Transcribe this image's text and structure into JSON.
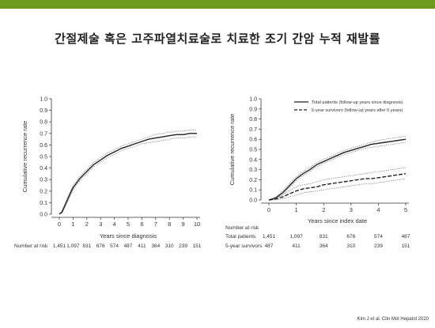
{
  "colors": {
    "topbar": "#6b9a1c",
    "line": "#222222",
    "ci": "#666666"
  },
  "slide": {
    "title": "간절제술 혹은 고주파열치료술로 치료한 조기 간암 누적 재발률",
    "citation": "Kim J et al. Clin Mol Hepatol 2020"
  },
  "chart_data": [
    {
      "type": "line",
      "title": "",
      "xlabel": "Years since diagnosis",
      "ylabel": "Cumulative recurrence rate",
      "xlim": [
        0,
        10
      ],
      "ylim": [
        0,
        1.0
      ],
      "xticks": [
        0,
        1,
        2,
        3,
        4,
        5,
        6,
        7,
        8,
        9,
        10
      ],
      "yticks": [
        "0.0",
        "0.1",
        "0.2",
        "0.3",
        "0.4",
        "0.5",
        "0.6",
        "0.7",
        "0.8",
        "0.9",
        "1.0"
      ],
      "grid": false,
      "series": [
        {
          "x": [
            0,
            0.2,
            0.5,
            0.8,
            1,
            1.5,
            2,
            2.5,
            3,
            3.5,
            4,
            4.5,
            5,
            5.5,
            6,
            6.5,
            7,
            7.5,
            8,
            8.5,
            9,
            9.5,
            10
          ],
          "values": [
            0,
            0.02,
            0.1,
            0.18,
            0.23,
            0.31,
            0.37,
            0.43,
            0.47,
            0.51,
            0.54,
            0.57,
            0.59,
            0.61,
            0.63,
            0.65,
            0.66,
            0.67,
            0.68,
            0.69,
            0.69,
            0.7,
            0.7
          ]
        }
      ],
      "ci_lower": [
        0,
        0.01,
        0.08,
        0.16,
        0.21,
        0.29,
        0.35,
        0.41,
        0.45,
        0.49,
        0.52,
        0.55,
        0.57,
        0.59,
        0.61,
        0.62,
        0.63,
        0.64,
        0.65,
        0.66,
        0.66,
        0.67,
        0.67
      ],
      "ci_upper": [
        0,
        0.03,
        0.12,
        0.2,
        0.25,
        0.33,
        0.39,
        0.45,
        0.49,
        0.53,
        0.56,
        0.59,
        0.61,
        0.63,
        0.65,
        0.67,
        0.69,
        0.7,
        0.71,
        0.72,
        0.72,
        0.73,
        0.73
      ],
      "risk_table": {
        "label": "Number at risk",
        "rows": [
          {
            "name": "",
            "values": [
              "1,451",
              "1,097",
              "831",
              "676",
              "574",
              "487",
              "411",
              "364",
              "310",
              "239",
              "151"
            ]
          }
        ]
      }
    },
    {
      "type": "line",
      "title": "",
      "xlabel": "Years since index date",
      "ylabel": "Cumulative recurrence rate",
      "xlim": [
        0,
        5
      ],
      "ylim": [
        0,
        1.0
      ],
      "xticks": [
        0,
        1,
        2,
        3,
        4,
        5
      ],
      "yticks": [
        "0.0",
        "0.1",
        "0.2",
        "0.3",
        "0.4",
        "0.5",
        "0.6",
        "0.7",
        "0.8",
        "0.9",
        "1.0"
      ],
      "grid": false,
      "legend": "top-right",
      "series": [
        {
          "name": "Total patients (follow-up years since diagnosis)",
          "style": "solid",
          "x": [
            0,
            0.25,
            0.5,
            0.75,
            1,
            1.25,
            1.5,
            1.75,
            2,
            2.25,
            2.5,
            2.75,
            3,
            3.25,
            3.5,
            3.75,
            4,
            4.25,
            4.5,
            4.75,
            5
          ],
          "values": [
            0,
            0.02,
            0.07,
            0.14,
            0.21,
            0.26,
            0.3,
            0.35,
            0.38,
            0.41,
            0.44,
            0.47,
            0.49,
            0.51,
            0.53,
            0.55,
            0.56,
            0.57,
            0.58,
            0.59,
            0.6
          ],
          "ci_lower": [
            0,
            0.01,
            0.05,
            0.12,
            0.19,
            0.24,
            0.28,
            0.33,
            0.36,
            0.39,
            0.42,
            0.45,
            0.47,
            0.49,
            0.51,
            0.52,
            0.53,
            0.54,
            0.55,
            0.56,
            0.57
          ],
          "ci_upper": [
            0,
            0.03,
            0.09,
            0.16,
            0.23,
            0.28,
            0.32,
            0.37,
            0.4,
            0.43,
            0.46,
            0.49,
            0.51,
            0.53,
            0.55,
            0.57,
            0.59,
            0.6,
            0.61,
            0.62,
            0.63
          ]
        },
        {
          "name": "5-year survivors (follow-up years after 5 years)",
          "style": "dashed",
          "x": [
            0,
            0.25,
            0.5,
            0.75,
            1,
            1.25,
            1.5,
            1.75,
            2,
            2.25,
            2.5,
            2.75,
            3,
            3.25,
            3.5,
            3.75,
            4,
            4.25,
            4.5,
            4.75,
            5
          ],
          "values": [
            0,
            0.01,
            0.03,
            0.06,
            0.09,
            0.11,
            0.12,
            0.13,
            0.15,
            0.16,
            0.17,
            0.18,
            0.19,
            0.2,
            0.21,
            0.21,
            0.22,
            0.23,
            0.24,
            0.25,
            0.26
          ],
          "ci_lower": [
            0,
            0,
            0.01,
            0.03,
            0.05,
            0.07,
            0.08,
            0.09,
            0.1,
            0.11,
            0.12,
            0.13,
            0.14,
            0.15,
            0.16,
            0.16,
            0.17,
            0.18,
            0.19,
            0.2,
            0.21
          ],
          "ci_upper": [
            0,
            0.02,
            0.05,
            0.09,
            0.13,
            0.15,
            0.16,
            0.18,
            0.2,
            0.21,
            0.22,
            0.23,
            0.24,
            0.25,
            0.26,
            0.27,
            0.28,
            0.29,
            0.3,
            0.31,
            0.32
          ]
        }
      ],
      "risk_table": {
        "label": "Number at risk",
        "rows": [
          {
            "name": "Total patients",
            "values": [
              "1,451",
              "1,097",
              "831",
              "676",
              "574",
              "487"
            ]
          },
          {
            "name": "5-year survivors",
            "values": [
              "487",
              "411",
              "364",
              "310",
              "239",
              "151"
            ]
          }
        ]
      }
    }
  ]
}
